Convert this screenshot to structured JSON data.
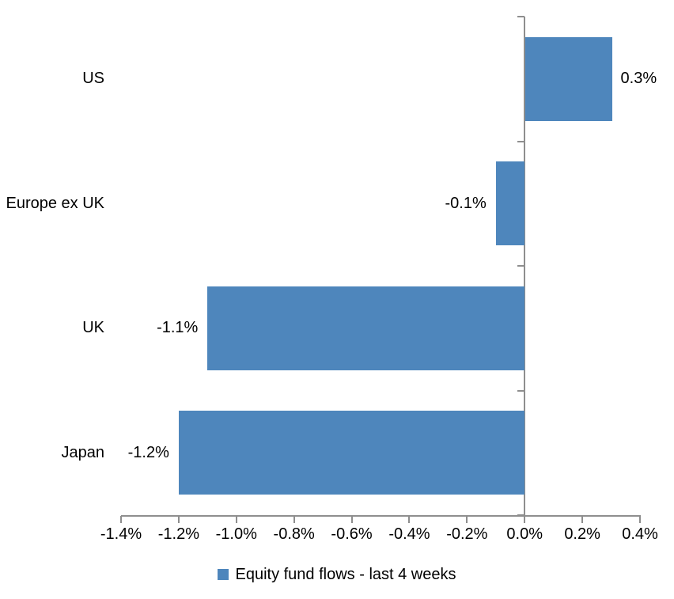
{
  "chart_data": {
    "type": "bar",
    "orientation": "horizontal",
    "title": "",
    "xlabel": "",
    "ylabel": "",
    "categories": [
      "US",
      "Europe ex UK",
      "UK",
      "Japan"
    ],
    "series": [
      {
        "name": "Equity fund flows - last 4 weeks",
        "values": [
          0.3,
          -0.1,
          -1.1,
          -1.2
        ],
        "data_labels": [
          "0.3%",
          "-0.1%",
          "-1.1%",
          "-1.2%"
        ],
        "color": "#4E86BC"
      }
    ],
    "xlim": [
      -1.4,
      0.4
    ],
    "x_ticks": [
      -1.4,
      -1.2,
      -1.0,
      -0.8,
      -0.6,
      -0.4,
      -0.2,
      0.0,
      0.2,
      0.4
    ],
    "x_tick_labels": [
      "-1.4%",
      "-1.2%",
      "-1.0%",
      "-0.8%",
      "-0.6%",
      "-0.4%",
      "-0.2%",
      "0.0%",
      "0.2%",
      "0.4%"
    ],
    "grid": false,
    "legend": {
      "position": "bottom",
      "marker": "square",
      "entries": [
        {
          "label": "Equity fund flows - last 4 weeks",
          "color": "#4E86BC"
        }
      ]
    },
    "colors": {
      "bar": "#4E86BC",
      "axis": "#8E8E8E",
      "text": "#000000",
      "background": "#FFFFFF"
    }
  }
}
